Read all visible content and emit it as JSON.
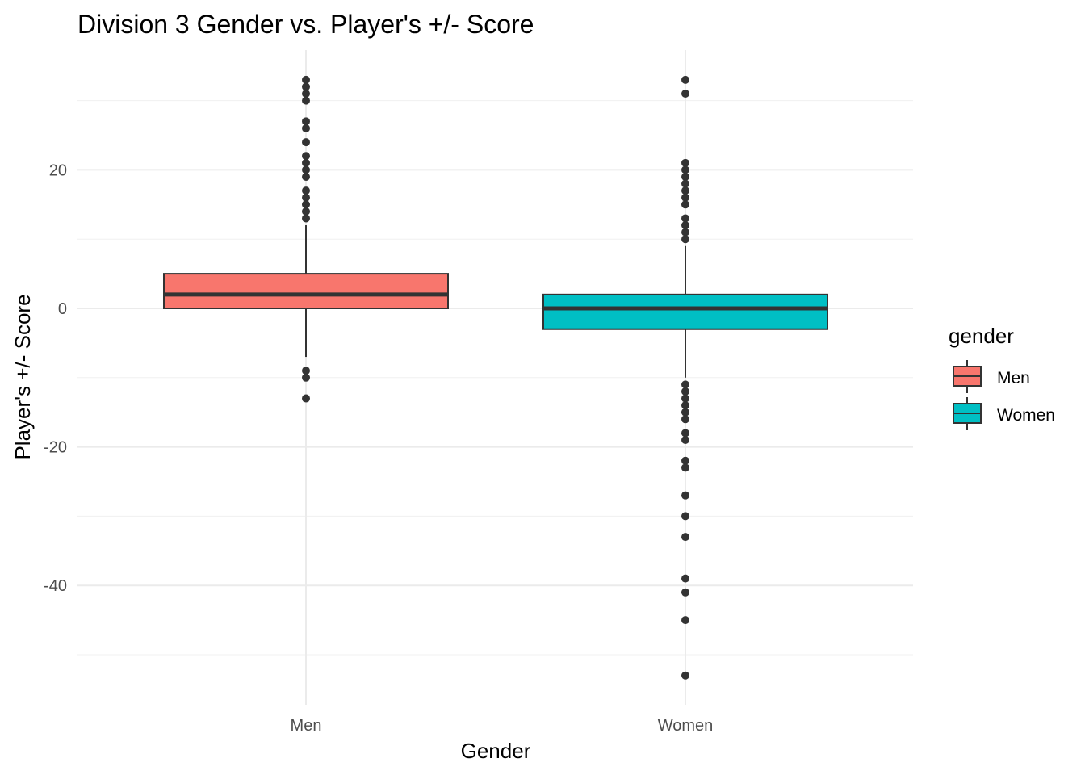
{
  "chart_data": {
    "type": "boxplot",
    "title": "Division 3 Gender vs. Player's +/- Score",
    "xlabel": "Gender",
    "ylabel": "Player's +/- Score",
    "categories": [
      "Men",
      "Women"
    ],
    "ylim": [
      -57,
      34
    ],
    "yticks": [
      -40,
      -20,
      0,
      20
    ],
    "grid": true,
    "legend": {
      "title": "gender",
      "position": "right",
      "entries": [
        "Men",
        "Women"
      ]
    },
    "colors": {
      "Men": "#F8766D",
      "Women": "#00BFC4"
    },
    "series": [
      {
        "name": "Men",
        "q1": 0,
        "median": 2,
        "q3": 5,
        "whisker_low": -7,
        "whisker_high": 12,
        "outliers": [
          33,
          32,
          31,
          30,
          27,
          26,
          24,
          22,
          21,
          20,
          19,
          17,
          16,
          15,
          14,
          13,
          -9,
          -10,
          -13
        ]
      },
      {
        "name": "Women",
        "q1": -3,
        "median": 0,
        "q3": 2,
        "whisker_low": -10,
        "whisker_high": 9,
        "outliers": [
          33,
          31,
          21,
          20,
          19,
          18,
          17,
          16,
          15,
          13,
          12,
          11,
          10,
          -11,
          -12,
          -13,
          -14,
          -15,
          -16,
          -18,
          -19,
          -22,
          -23,
          -27,
          -30,
          -33,
          -39,
          -41,
          -45,
          -53
        ]
      }
    ]
  }
}
